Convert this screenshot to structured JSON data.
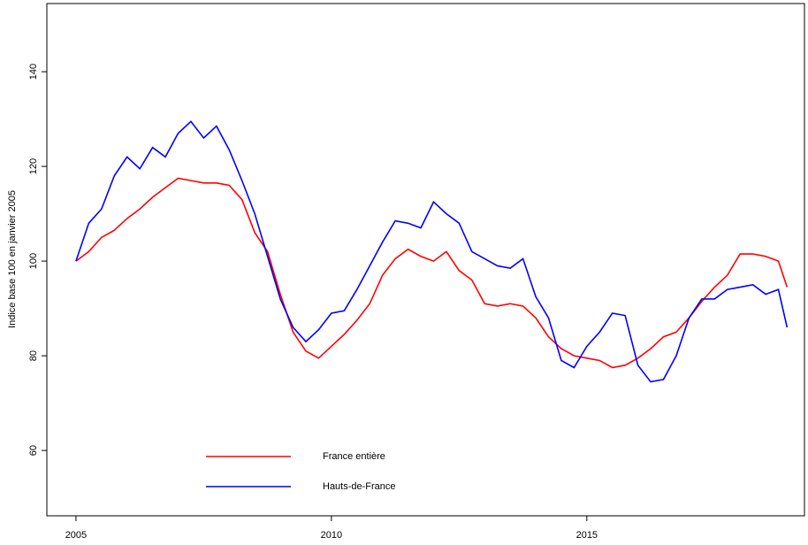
{
  "chart_data": {
    "type": "line",
    "ylabel": "Indice base 100 en janvier 2005",
    "x": [
      2005.0,
      2005.25,
      2005.5,
      2005.75,
      2006.0,
      2006.25,
      2006.5,
      2006.75,
      2007.0,
      2007.25,
      2007.5,
      2007.75,
      2008.0,
      2008.25,
      2008.5,
      2008.75,
      2009.0,
      2009.25,
      2009.5,
      2009.75,
      2010.0,
      2010.25,
      2010.5,
      2010.75,
      2011.0,
      2011.25,
      2011.5,
      2011.75,
      2012.0,
      2012.25,
      2012.5,
      2012.75,
      2013.0,
      2013.25,
      2013.5,
      2013.75,
      2014.0,
      2014.25,
      2014.5,
      2014.75,
      2015.0,
      2015.25,
      2015.5,
      2015.75,
      2016.0,
      2016.25,
      2016.5,
      2016.75,
      2017.0,
      2017.25,
      2017.5,
      2017.75,
      2018.0,
      2018.25,
      2018.5,
      2018.75,
      2018.92
    ],
    "series": [
      {
        "name": "France entière",
        "color": "#ff0000",
        "values": [
          100,
          102,
          105,
          106.5,
          109,
          111,
          113.5,
          115.5,
          117.5,
          117,
          116.5,
          116.5,
          116,
          113,
          106,
          102,
          93,
          85,
          81,
          79.5,
          82,
          84.5,
          87.5,
          91,
          97,
          100.5,
          102.5,
          101,
          100,
          102,
          98,
          96,
          91,
          90.5,
          91,
          90.5,
          88,
          84,
          81.5,
          80,
          79.5,
          79,
          77.5,
          78,
          79.5,
          81.5,
          84,
          85,
          88,
          91.5,
          94.5,
          97,
          101.5,
          101.5,
          101,
          100,
          94.5
        ]
      },
      {
        "name": "Hauts-de-France",
        "color": "#0000ff",
        "values": [
          100,
          108,
          111,
          118,
          122,
          119.5,
          124,
          122,
          127,
          129.5,
          126,
          128.5,
          123.5,
          117,
          110,
          101,
          92,
          86,
          83,
          85.5,
          89,
          89.5,
          94,
          99,
          104,
          108.5,
          108,
          107,
          112.5,
          110,
          108,
          102,
          100.5,
          99,
          98.5,
          100.5,
          92.5,
          88,
          79,
          77.5,
          82,
          85,
          89,
          88.5,
          78,
          74.5,
          75,
          80,
          88,
          92,
          92,
          94,
          94.5,
          95,
          93,
          94,
          86
        ]
      }
    ],
    "xlim": [
      2004.43,
      2019.26
    ],
    "xticks": [
      2005,
      2010,
      2015
    ],
    "ylim": [
      46.2,
      154.4
    ],
    "yticks": [
      60,
      80,
      100,
      120,
      140
    ],
    "legend": "bottom-left"
  }
}
